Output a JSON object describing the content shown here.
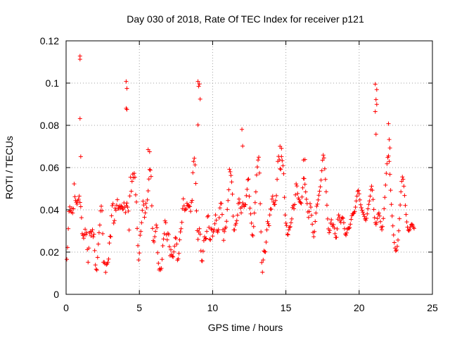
{
  "chart_data": {
    "type": "scatter",
    "title": "Day 030 of 2018, Rate Of TEC Index for receiver p121",
    "xlabel": "GPS time / hours",
    "ylabel": "ROTI / TECUs",
    "xlim": [
      0,
      25
    ],
    "ylim": [
      0,
      0.12
    ],
    "x_ticks": [
      0,
      5,
      10,
      15,
      20,
      25
    ],
    "x_tick_labels": [
      "0",
      "5",
      "10",
      "15",
      "20",
      "25"
    ],
    "y_ticks": [
      0,
      0.02,
      0.04,
      0.06,
      0.08,
      0.1,
      0.12
    ],
    "y_tick_labels": [
      "0",
      "0.02",
      "0.04",
      "0.06",
      "0.08",
      "0.1",
      "0.12"
    ],
    "grid": true,
    "marker": "+",
    "color": "#ff0000",
    "series": [
      {
        "x": [
          0.05,
          0.1,
          0.15,
          0.2,
          0.25,
          0.3,
          0.35,
          0.4,
          0.45,
          0.5,
          0.55,
          0.6,
          0.65,
          0.7,
          0.75,
          0.8,
          0.85,
          0.9,
          0.95,
          1.0,
          1.05,
          1.1,
          1.15,
          1.2,
          1.25,
          1.3,
          1.35,
          1.4,
          1.45,
          1.5,
          1.55,
          1.6,
          1.65,
          1.7,
          1.75,
          1.8,
          1.85,
          1.9,
          1.95,
          2.0,
          2.05,
          2.1,
          2.15,
          2.2,
          2.25,
          2.3,
          2.35,
          2.4,
          2.45,
          2.5,
          2.55,
          2.6,
          2.65,
          2.7,
          2.75,
          2.8,
          2.85,
          2.9,
          2.95,
          3.0,
          3.05,
          3.1,
          3.15,
          3.2,
          3.25,
          3.3,
          3.35,
          3.4,
          3.45,
          3.5,
          3.55,
          3.6,
          3.65,
          3.7,
          3.75,
          3.8,
          3.85,
          3.9,
          3.95,
          4.0,
          4.05,
          4.1,
          4.15,
          4.2,
          4.25,
          4.3,
          4.35,
          4.4,
          4.45,
          4.5,
          4.55,
          4.6,
          4.65,
          4.7,
          4.75,
          4.8,
          4.85,
          4.9,
          4.95,
          5.0,
          5.05,
          5.1,
          5.15,
          5.2,
          5.25,
          5.3,
          5.35,
          5.4,
          5.45,
          5.5,
          5.55,
          5.6,
          5.65,
          5.7,
          5.75,
          5.8,
          5.85,
          5.9,
          5.95,
          6.0,
          6.05,
          6.1,
          6.15,
          6.2,
          6.25,
          6.3,
          6.35,
          6.4,
          6.45,
          6.5,
          6.55,
          6.6,
          6.65,
          6.7,
          6.75,
          6.8,
          6.85,
          6.9,
          6.95,
          7.0,
          7.05,
          7.1,
          7.15,
          7.2,
          7.25,
          7.3,
          7.35,
          7.4,
          7.45,
          7.5,
          7.55,
          7.6,
          7.65,
          7.7,
          7.75,
          7.8,
          7.85,
          7.9,
          7.95,
          8.0,
          8.05,
          8.1,
          8.15,
          8.2,
          8.25,
          8.3,
          8.35,
          8.4,
          8.45,
          8.5,
          8.55,
          8.6,
          8.65,
          8.7,
          8.75,
          8.8,
          8.85,
          8.9,
          8.95,
          9.0,
          9.05,
          9.1,
          9.15,
          9.2,
          9.25,
          9.3,
          9.35,
          9.4,
          9.45,
          9.5,
          9.55,
          9.6,
          9.65,
          9.7,
          9.75,
          9.8,
          9.85,
          9.9,
          9.95,
          10.0,
          10.05,
          10.1,
          10.15,
          10.2,
          10.25,
          10.3,
          10.35,
          10.4,
          10.45,
          10.5,
          10.55,
          10.6,
          10.65,
          10.7,
          10.75,
          10.8,
          10.85,
          10.9,
          10.95,
          11.0,
          11.05,
          11.1,
          11.15,
          11.2,
          11.25,
          11.3,
          11.35,
          11.4,
          11.45,
          11.5,
          11.55,
          11.6,
          11.65,
          11.7,
          11.75,
          11.8,
          11.85,
          11.9,
          11.95,
          12.0,
          12.05,
          12.1,
          12.15,
          12.2,
          12.25,
          12.3,
          12.35,
          12.4,
          12.45,
          12.5,
          12.55,
          12.6,
          12.65,
          12.7,
          12.75,
          12.8,
          12.85,
          12.9,
          12.95,
          13.0,
          13.05,
          13.1,
          13.15,
          13.2,
          13.25,
          13.3,
          13.35,
          13.4,
          13.45,
          13.5,
          13.55,
          13.6,
          13.65,
          13.7,
          13.75,
          13.8,
          13.85,
          13.9,
          13.95,
          14.0,
          14.05,
          14.1,
          14.15,
          14.2,
          14.25,
          14.3,
          14.35,
          14.4,
          14.45,
          14.5,
          14.55,
          14.6,
          14.65,
          14.7,
          14.75,
          14.8,
          14.85,
          14.9,
          14.95,
          15.0,
          15.05,
          15.1,
          15.15,
          15.2,
          15.25,
          15.3,
          15.35,
          15.4,
          15.45,
          15.5,
          15.55,
          15.6,
          15.65,
          15.7,
          15.75,
          15.8,
          15.85,
          15.9,
          15.95,
          16.0,
          16.05,
          16.1,
          16.15,
          16.2,
          16.25,
          16.3,
          16.35,
          16.4,
          16.45,
          16.5,
          16.55,
          16.6,
          16.65,
          16.7,
          16.75,
          16.8,
          16.85,
          16.9,
          16.95,
          17.0,
          17.05,
          17.1,
          17.15,
          17.2,
          17.25,
          17.3,
          17.35,
          17.4,
          17.45,
          17.5,
          17.55,
          17.6,
          17.65,
          17.7,
          17.75,
          17.8,
          17.85,
          17.9,
          17.95,
          18.0,
          18.05,
          18.1,
          18.15,
          18.2,
          18.25,
          18.3,
          18.35,
          18.4,
          18.45,
          18.5,
          18.55,
          18.6,
          18.65,
          18.7,
          18.75,
          18.8,
          18.85,
          18.9,
          18.95,
          19.0,
          19.05,
          19.1,
          19.15,
          19.2,
          19.25,
          19.3,
          19.35,
          19.4,
          19.45,
          19.5,
          19.55,
          19.6,
          19.65,
          19.7,
          19.75,
          19.8,
          19.85,
          19.9,
          19.95,
          20.0,
          20.05,
          20.1,
          20.15,
          20.2,
          20.25,
          20.3,
          20.35,
          20.4,
          20.45,
          20.5,
          20.55,
          20.6,
          20.65,
          20.7,
          20.75,
          20.8,
          20.85,
          20.9,
          20.95,
          21.0,
          21.05,
          21.1,
          21.15,
          21.2,
          21.25,
          21.3,
          21.35,
          21.4,
          21.45,
          21.5,
          21.55,
          21.6,
          21.65,
          21.7,
          21.75,
          21.8,
          21.85,
          21.9,
          21.95,
          22.0,
          22.05,
          22.1,
          22.15,
          22.2,
          22.25,
          22.3,
          22.35,
          22.4,
          22.45,
          22.5,
          22.55,
          22.6,
          22.65,
          22.7,
          22.75,
          22.8,
          22.85,
          22.9,
          22.95,
          23.0,
          23.05,
          23.1,
          23.15,
          23.2,
          23.25,
          23.3,
          23.35,
          23.4,
          23.45,
          23.5,
          23.55,
          23.6,
          23.65,
          23.7,
          23.75,
          0.95,
          0.95,
          0.95,
          1.0,
          4.1,
          4.15,
          4.1,
          4.15,
          9.0,
          9.1,
          9.05,
          9.15,
          9.0,
          21.1,
          21.2,
          21.15,
          21.2,
          21.1,
          21.15,
          22.0,
          22.05,
          22.1,
          12.0,
          12.05,
          14.6,
          14.7,
          16.2,
          16.3,
          5.6,
          5.7
        ],
        "y": [
          0.0166,
          0.0222,
          0.0311,
          0.0392,
          0.0414,
          0.0397,
          0.0389,
          0.0407,
          0.0385,
          0.0405,
          0.0523,
          0.0462,
          0.0444,
          0.0436,
          0.0427,
          0.0442,
          0.045,
          0.0465,
          0.0435,
          0.0415,
          0.0363,
          0.0287,
          0.0279,
          0.0266,
          0.0284,
          0.0308,
          0.0282,
          0.0293,
          0.0212,
          0.0152,
          0.0219,
          0.029,
          0.0298,
          0.0277,
          0.0296,
          0.0306,
          0.0272,
          0.0284,
          0.0207,
          0.0139,
          0.0119,
          0.0115,
          0.0175,
          0.0238,
          0.0292,
          0.0328,
          0.0395,
          0.0417,
          0.0396,
          0.0287,
          0.0152,
          0.0152,
          0.0145,
          0.0104,
          0.0141,
          0.0144,
          0.0152,
          0.0167,
          0.0243,
          0.0275,
          0.0273,
          0.0372,
          0.042,
          0.0429,
          0.0337,
          0.0349,
          0.0408,
          0.0398,
          0.0422,
          0.0448,
          0.0407,
          0.0407,
          0.0419,
          0.0408,
          0.0419,
          0.0415,
          0.0403,
          0.0404,
          0.0433,
          0.0412,
          0.0387,
          0.0419,
          0.0432,
          0.0413,
          0.0394,
          0.0304,
          0.0466,
          0.0554,
          0.0488,
          0.0535,
          0.0569,
          0.0552,
          0.0573,
          0.0554,
          0.0471,
          0.0437,
          0.0312,
          0.0231,
          0.0163,
          0.0196,
          0.028,
          0.0298,
          0.0339,
          0.0398,
          0.0441,
          0.0423,
          0.0365,
          0.0386,
          0.0431,
          0.041,
          0.0447,
          0.049,
          0.0546,
          0.0591,
          0.0588,
          0.0558,
          0.0419,
          0.0312,
          0.0255,
          0.0248,
          0.0273,
          0.0298,
          0.0328,
          0.0316,
          0.0197,
          0.0147,
          0.0116,
          0.0122,
          0.0116,
          0.0123,
          0.0166,
          0.023,
          0.0262,
          0.0287,
          0.0348,
          0.0339,
          0.0282,
          0.0258,
          0.0289,
          0.0283,
          0.0226,
          0.0183,
          0.0211,
          0.0189,
          0.0181,
          0.0177,
          0.0201,
          0.0228,
          0.0268,
          0.0266,
          0.0238,
          0.0162,
          0.0168,
          0.0194,
          0.0258,
          0.0296,
          0.0311,
          0.0341,
          0.0406,
          0.0452,
          0.0419,
          0.0398,
          0.0403,
          0.0404,
          0.0431,
          0.042,
          0.0418,
          0.0418,
          0.0416,
          0.0393,
          0.0436,
          0.0445,
          0.0576,
          0.0629,
          0.0644,
          0.0613,
          0.0525,
          0.0395,
          0.0302,
          0.026,
          0.0296,
          0.0311,
          0.0285,
          0.0206,
          0.0159,
          0.0158,
          0.0204,
          0.0254,
          0.0272,
          0.0262,
          0.0265,
          0.0298,
          0.0367,
          0.0372,
          0.0317,
          0.0261,
          0.0258,
          0.0311,
          0.0305,
          0.0276,
          0.0296,
          0.0307,
          0.0334,
          0.0376,
          0.0351,
          0.0301,
          0.0294,
          0.0306,
          0.0363,
          0.0409,
          0.0431,
          0.043,
          0.0378,
          0.0306,
          0.0256,
          0.0297,
          0.0311,
          0.0318,
          0.0346,
          0.0402,
          0.0444,
          0.0495,
          0.0592,
          0.058,
          0.0563,
          0.0532,
          0.0474,
          0.037,
          0.0305,
          0.0305,
          0.0328,
          0.0336,
          0.0349,
          0.0375,
          0.043,
          0.0451,
          0.0434,
          0.0408,
          0.0386,
          0.0414,
          0.0433,
          0.0423,
          0.0415,
          0.0425,
          0.0424,
          0.0467,
          0.0497,
          0.0542,
          0.0546,
          0.0464,
          0.0408,
          0.0381,
          0.0337,
          0.0282,
          0.0277,
          0.0321,
          0.0385,
          0.0434,
          0.0485,
          0.0565,
          0.0603,
          0.0636,
          0.0649,
          0.0574,
          0.0429,
          0.0296,
          0.0151,
          0.0105,
          0.0163,
          0.0206,
          0.0202,
          0.0201,
          0.0247,
          0.0305,
          0.0344,
          0.0334,
          0.0325,
          0.0376,
          0.0404,
          0.0403,
          0.0451,
          0.0465,
          0.0437,
          0.0426,
          0.0426,
          0.0444,
          0.0467,
          0.0544,
          0.0629,
          0.0653,
          0.0637,
          0.0594,
          0.0592,
          0.0652,
          0.0633,
          0.0609,
          0.0571,
          0.0459,
          0.0376,
          0.0337,
          0.0326,
          0.0285,
          0.0282,
          0.0305,
          0.0317,
          0.032,
          0.0339,
          0.0357,
          0.0411,
          0.0421,
          0.0405,
          0.0425,
          0.0471,
          0.0523,
          0.0513,
          0.0477,
          0.0456,
          0.0448,
          0.0438,
          0.0434,
          0.0431,
          0.0461,
          0.0504,
          0.0549,
          0.0548,
          0.0521,
          0.0485,
          0.045,
          0.043,
          0.039,
          0.0364,
          0.0392,
          0.0429,
          0.0413,
          0.0374,
          0.0332,
          0.0293,
          0.0273,
          0.0297,
          0.0345,
          0.0385,
          0.0417,
          0.0427,
          0.0447,
          0.0469,
          0.0488,
          0.0509,
          0.0541,
          0.0585,
          0.0635,
          0.0659,
          0.0646,
          0.0594,
          0.0544,
          0.0486,
          0.0422,
          0.0357,
          0.031,
          0.0292,
          0.0303,
          0.0337,
          0.0353,
          0.0331,
          0.0322,
          0.033,
          0.0314,
          0.0287,
          0.0269,
          0.027,
          0.031,
          0.0356,
          0.0376,
          0.0366,
          0.0348,
          0.034,
          0.0357,
          0.0364,
          0.036,
          0.0339,
          0.0311,
          0.0286,
          0.028,
          0.0291,
          0.0308,
          0.0314,
          0.0312,
          0.0316,
          0.0332,
          0.0355,
          0.0372,
          0.0381,
          0.0382,
          0.0386,
          0.0392,
          0.0413,
          0.0442,
          0.0465,
          0.0487,
          0.0492,
          0.0476,
          0.0447,
          0.0424,
          0.041,
          0.0398,
          0.0389,
          0.0379,
          0.0369,
          0.0357,
          0.0351,
          0.036,
          0.0381,
          0.0405,
          0.0426,
          0.0442,
          0.0465,
          0.0496,
          0.0512,
          0.0493,
          0.0449,
          0.0402,
          0.0363,
          0.0339,
          0.0331,
          0.0339,
          0.0359,
          0.0379,
          0.0385,
          0.0371,
          0.0344,
          0.0318,
          0.0306,
          0.0321,
          0.0359,
          0.0405,
          0.0459,
          0.0517,
          0.0573,
          0.0618,
          0.0648,
          0.0655,
          0.0629,
          0.0568,
          0.0493,
          0.0426,
          0.0371,
          0.0324,
          0.0281,
          0.0245,
          0.0219,
          0.0206,
          0.021,
          0.0227,
          0.0257,
          0.0301,
          0.0358,
          0.0423,
          0.0486,
          0.0535,
          0.0556,
          0.0545,
          0.0512,
          0.0468,
          0.0421,
          0.0378,
          0.0343,
          0.0318,
          0.0304,
          0.0301,
          0.0307,
          0.0319,
          0.0329,
          0.0332,
          0.0327,
          0.0318,
          0.0312,
          0.1113,
          0.1128,
          0.0832,
          0.0652,
          0.1008,
          0.0975,
          0.0881,
          0.0875,
          0.1008,
          0.0996,
          0.0985,
          0.0924,
          0.0802,
          0.0995,
          0.0969,
          0.0922,
          0.0899,
          0.0865,
          0.0758,
          0.0808,
          0.0733,
          0.0693,
          0.0781,
          0.0702,
          0.0701,
          0.0691,
          0.0636,
          0.0638,
          0.0685,
          0.0675
        ]
      }
    ]
  }
}
